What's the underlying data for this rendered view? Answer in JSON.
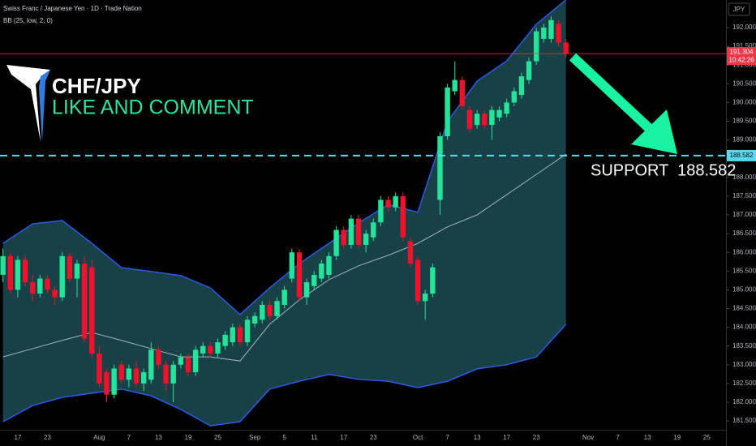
{
  "chart_data": {
    "type": "candlestick",
    "title": "Swiss Franc / Japanese Yen · 1D · Trade Nation",
    "subtitle": "BB (25, low, 2, 0)",
    "headline": "CHF/JPY",
    "callout": "LIKE AND COMMENT",
    "support_text": "SUPPORT  188.582",
    "currency": "JPY",
    "support_level": 188.582,
    "last_price": 191.304,
    "countdown": "10:42:26",
    "up_color": "#22e59a",
    "down_color": "#f2112a",
    "band_color": "#2b5be8",
    "band_fill": "#1b474f",
    "basis_color": "#9fb8bb",
    "support_color": "#5ad8f2",
    "price_line_color": "#f23645",
    "ylim": [
      181.264,
      192.736
    ],
    "yticks": [
      {
        "value": 181.5,
        "label": "181.500"
      },
      {
        "value": 182,
        "label": "182.000"
      },
      {
        "value": 182.5,
        "label": "182.500"
      },
      {
        "value": 183,
        "label": "183.000"
      },
      {
        "value": 183.5,
        "label": "183.500"
      },
      {
        "value": 184,
        "label": "184.000"
      },
      {
        "value": 184.5,
        "label": "184.500"
      },
      {
        "value": 185,
        "label": "185.000"
      },
      {
        "value": 185.5,
        "label": "185.500"
      },
      {
        "value": 186,
        "label": "186.000"
      },
      {
        "value": 186.5,
        "label": "186.500"
      },
      {
        "value": 187,
        "label": "187.000"
      },
      {
        "value": 187.5,
        "label": "187.500"
      },
      {
        "value": 188,
        "label": "188.000"
      },
      {
        "value": 188.5,
        "label": "188.500"
      },
      {
        "value": 189,
        "label": "189.000"
      },
      {
        "value": 189.5,
        "label": "189.500"
      },
      {
        "value": 190,
        "label": "190.000"
      },
      {
        "value": 190.5,
        "label": "190.500"
      },
      {
        "value": 191,
        "label": "191.000"
      },
      {
        "value": 191.5,
        "label": "191.500"
      },
      {
        "value": 192,
        "label": "192.000"
      }
    ],
    "categories": [
      null,
      null,
      "17",
      null,
      null,
      null,
      "23",
      null,
      null,
      null,
      null,
      null,
      null,
      "Aug",
      null,
      null,
      null,
      "7",
      null,
      null,
      null,
      "13",
      null,
      null,
      null,
      "19",
      null,
      null,
      null,
      "25",
      null,
      null,
      null,
      null,
      "Sep",
      null,
      null,
      null,
      "5",
      null,
      null,
      null,
      "11",
      null,
      null,
      null,
      "17",
      null,
      null,
      null,
      "23",
      null,
      null,
      null,
      null,
      null,
      "Oct",
      null,
      null,
      null,
      "7",
      null,
      null,
      null,
      "13",
      null,
      null,
      null,
      "17",
      null,
      null,
      null,
      "23",
      null,
      null,
      null,
      null,
      null,
      null,
      "Nov",
      null,
      null,
      null,
      "7",
      null,
      null,
      null,
      "13",
      null,
      null,
      null,
      "19",
      null,
      null,
      null,
      "25",
      null,
      null
    ],
    "ohlc": [
      [
        185.4,
        186.1,
        185.2,
        185.9
      ],
      [
        185.9,
        186.0,
        184.9,
        185.0
      ],
      [
        185.0,
        185.9,
        184.8,
        185.8
      ],
      [
        185.8,
        185.9,
        185.1,
        185.2
      ],
      [
        185.2,
        185.4,
        184.7,
        184.9
      ],
      [
        184.9,
        185.4,
        184.8,
        185.3
      ],
      [
        185.3,
        185.4,
        184.9,
        185.0
      ],
      [
        185.0,
        185.1,
        184.6,
        184.8
      ],
      [
        184.8,
        186.0,
        184.7,
        185.9
      ],
      [
        185.9,
        186.0,
        185.2,
        185.3
      ],
      [
        185.3,
        185.8,
        184.8,
        185.7
      ],
      [
        185.7,
        185.9,
        183.6,
        183.7
      ],
      [
        185.6,
        185.8,
        183.2,
        183.3
      ],
      [
        183.3,
        183.5,
        182.4,
        182.5
      ],
      [
        182.8,
        182.9,
        182.0,
        182.2
      ],
      [
        182.2,
        183.0,
        182.1,
        182.9
      ],
      [
        183.0,
        183.1,
        182.5,
        182.6
      ],
      [
        182.6,
        183.0,
        182.4,
        182.9
      ],
      [
        182.9,
        183.1,
        182.4,
        182.5
      ],
      [
        182.5,
        182.9,
        182.3,
        182.8
      ],
      [
        182.6,
        183.6,
        182.5,
        183.4
      ],
      [
        183.4,
        183.5,
        182.9,
        183.0
      ],
      [
        183.0,
        183.1,
        182.3,
        182.5
      ],
      [
        182.5,
        183.1,
        182.0,
        183.0
      ],
      [
        183.0,
        183.3,
        182.9,
        183.2
      ],
      [
        183.2,
        183.3,
        182.7,
        182.8
      ],
      [
        182.8,
        183.5,
        182.7,
        183.4
      ],
      [
        183.3,
        183.6,
        183.2,
        183.5
      ],
      [
        183.5,
        183.6,
        183.2,
        183.3
      ],
      [
        183.3,
        183.7,
        183.2,
        183.6
      ],
      [
        183.5,
        183.9,
        183.4,
        183.8
      ],
      [
        183.6,
        184.1,
        183.5,
        184.0
      ],
      [
        184.0,
        184.1,
        183.5,
        183.6
      ],
      [
        183.6,
        184.3,
        183.5,
        184.2
      ],
      [
        184.1,
        184.4,
        184.0,
        184.3
      ],
      [
        184.2,
        184.7,
        184.1,
        184.6
      ],
      [
        184.6,
        184.7,
        184.2,
        184.3
      ],
      [
        184.3,
        184.8,
        184.2,
        184.7
      ],
      [
        184.6,
        185.1,
        184.5,
        185.0
      ],
      [
        185.3,
        186.1,
        185.2,
        186.0
      ],
      [
        186.0,
        186.1,
        184.7,
        184.8
      ],
      [
        184.8,
        185.3,
        184.6,
        185.2
      ],
      [
        185.1,
        185.5,
        185.0,
        185.4
      ],
      [
        185.3,
        185.8,
        185.2,
        185.7
      ],
      [
        185.4,
        186.0,
        185.3,
        185.9
      ],
      [
        185.9,
        186.7,
        185.8,
        186.6
      ],
      [
        186.6,
        186.7,
        186.1,
        186.2
      ],
      [
        186.2,
        187.0,
        186.1,
        186.9
      ],
      [
        186.9,
        187.0,
        186.1,
        186.2
      ],
      [
        186.2,
        186.6,
        186.0,
        186.5
      ],
      [
        186.4,
        186.9,
        186.3,
        186.8
      ],
      [
        186.8,
        187.5,
        186.7,
        187.4
      ],
      [
        187.4,
        187.5,
        187.1,
        187.2
      ],
      [
        187.2,
        187.6,
        187.1,
        187.5
      ],
      [
        187.5,
        187.6,
        186.3,
        186.4
      ],
      [
        186.3,
        186.4,
        185.6,
        185.7
      ],
      [
        185.8,
        185.9,
        184.6,
        184.7
      ],
      [
        184.7,
        185.0,
        184.2,
        184.9
      ],
      [
        184.9,
        185.7,
        184.8,
        185.6
      ],
      [
        187.4,
        189.2,
        187.0,
        189.1
      ],
      [
        189.1,
        190.5,
        189.0,
        190.4
      ],
      [
        190.3,
        191.1,
        190.2,
        190.6
      ],
      [
        190.6,
        190.7,
        189.8,
        189.9
      ],
      [
        189.8,
        189.9,
        189.2,
        189.3
      ],
      [
        189.4,
        189.8,
        189.3,
        189.7
      ],
      [
        189.7,
        189.8,
        189.3,
        189.4
      ],
      [
        189.4,
        189.9,
        189.0,
        189.8
      ],
      [
        189.6,
        189.9,
        189.5,
        189.8
      ],
      [
        189.7,
        190.1,
        189.6,
        190.0
      ],
      [
        190.0,
        190.4,
        189.9,
        190.3
      ],
      [
        190.2,
        190.8,
        190.1,
        190.7
      ],
      [
        190.6,
        191.2,
        190.5,
        191.1
      ],
      [
        191.1,
        192.0,
        191.0,
        191.9
      ],
      [
        191.7,
        192.1,
        191.6,
        192.0
      ],
      [
        191.7,
        192.3,
        191.6,
        192.2
      ],
      [
        192.1,
        192.2,
        191.5,
        191.6
      ],
      [
        191.6,
        191.7,
        191.2,
        191.304
      ],
      null,
      null,
      null,
      null,
      null,
      null,
      null,
      null,
      null,
      null,
      null,
      null,
      null,
      null,
      null,
      null,
      null,
      null,
      null,
      null,
      null
    ],
    "bands": {
      "x": [
        0,
        4,
        8,
        12,
        16,
        20,
        24,
        28,
        32,
        36,
        40,
        44,
        48,
        52,
        56,
        60,
        64,
        68,
        72,
        76
      ],
      "upper": [
        186.24,
        186.76,
        186.85,
        186.24,
        185.59,
        185.49,
        185.38,
        185.05,
        184.34,
        185.05,
        185.7,
        186.24,
        186.78,
        187.28,
        187.07,
        189.49,
        190.57,
        191.11,
        192.09,
        192.74
      ],
      "middle": [
        183.21,
        183.43,
        183.65,
        183.86,
        183.65,
        183.43,
        183.21,
        183.21,
        183.1,
        184.08,
        184.73,
        185.27,
        185.64,
        185.92,
        186.24,
        186.68,
        187.0,
        187.54,
        188.08,
        188.62
      ],
      "lower": [
        181.48,
        181.91,
        182.13,
        182.24,
        182.35,
        182.17,
        181.81,
        181.37,
        181.48,
        182.35,
        182.56,
        182.74,
        182.61,
        182.56,
        182.39,
        182.56,
        182.89,
        183.0,
        183.21,
        184.08
      ]
    }
  }
}
